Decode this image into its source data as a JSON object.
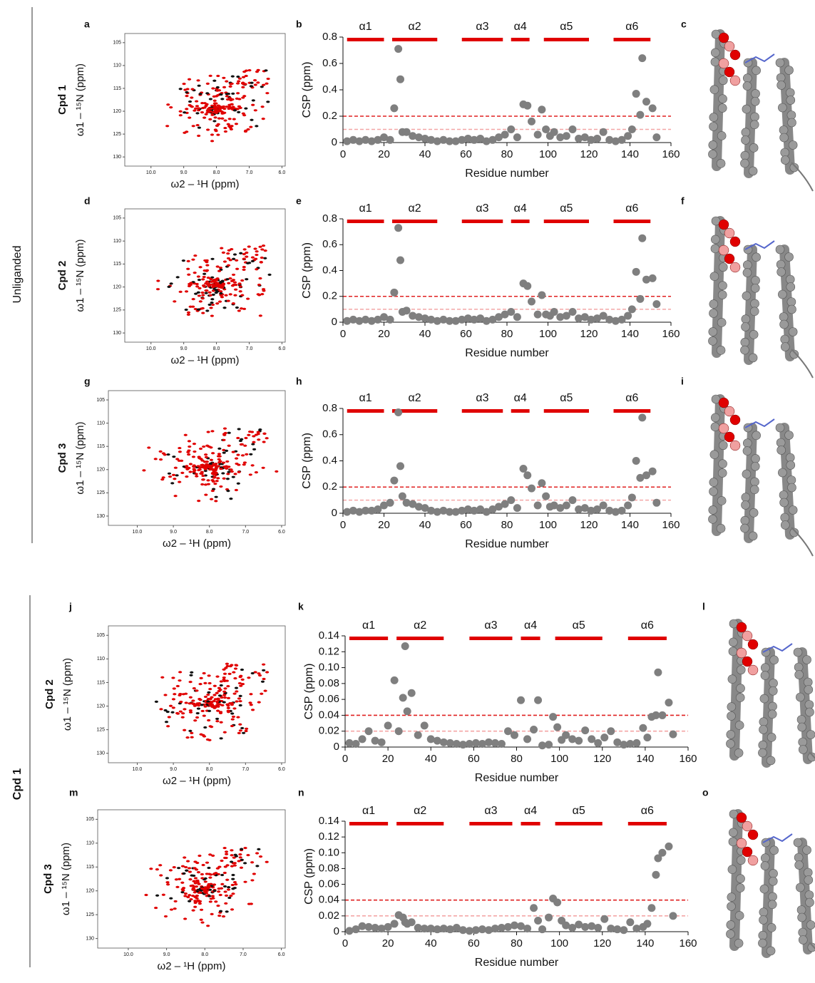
{
  "groups": [
    {
      "label": "Unliganded"
    },
    {
      "label": "Cpd 1"
    }
  ],
  "structure_panels": [
    "c",
    "f",
    "i",
    "l",
    "o"
  ],
  "chart_data": [
    {
      "type": "spectrum",
      "panel": "a",
      "compound": "Cpd 1",
      "xlabel": "ω2 – ¹H (ppm)",
      "ylabel": "ω1 – ¹⁵N (ppm)",
      "xlim": [
        10.8,
        5.9
      ],
      "xticks": [
        {
          "value": 10,
          "label": "10.0"
        },
        {
          "value": 9,
          "label": "9.0"
        },
        {
          "value": 8,
          "label": "8.0"
        },
        {
          "value": 7,
          "label": "7.0"
        },
        {
          "value": 6,
          "label": "6.0"
        }
      ],
      "ylim": [
        103,
        132
      ],
      "yticks": [
        105,
        110,
        115,
        120,
        125,
        130
      ],
      "colors": [
        "#e00000",
        "#111111"
      ]
    },
    {
      "type": "scatter",
      "panel": "b",
      "xlabel": "Residue number",
      "ylabel": "CSP (ppm)",
      "color": "#7f7f7f",
      "helix_color": "#e00000",
      "xlim": [
        0,
        160
      ],
      "xticks": [
        0,
        20,
        40,
        60,
        80,
        100,
        120,
        140,
        160
      ],
      "ylim": [
        0,
        0.8
      ],
      "yticks": [
        0,
        0.2,
        0.4,
        0.6,
        0.8
      ],
      "thresholds": [
        {
          "value": 0.2,
          "color": "#e02020"
        },
        {
          "value": 0.1,
          "color": "#f4a6a6"
        }
      ],
      "helices": [
        {
          "label": "α1",
          "start": 2,
          "end": 20
        },
        {
          "label": "α2",
          "start": 24,
          "end": 46
        },
        {
          "label": "α3",
          "start": 58,
          "end": 78
        },
        {
          "label": "α4",
          "start": 82,
          "end": 91
        },
        {
          "label": "α5",
          "start": 98,
          "end": 120
        },
        {
          "label": "α6",
          "start": 132,
          "end": 150
        }
      ],
      "x": [
        2,
        5,
        8,
        11,
        14,
        17,
        20,
        23,
        25,
        27,
        28,
        29,
        31,
        34,
        37,
        40,
        43,
        46,
        49,
        52,
        55,
        58,
        61,
        64,
        67,
        70,
        73,
        76,
        79,
        82,
        85,
        88,
        90,
        92,
        95,
        97,
        99,
        101,
        103,
        106,
        109,
        112,
        115,
        118,
        121,
        124,
        127,
        130,
        133,
        136,
        139,
        141,
        143,
        145,
        146,
        148,
        151,
        153
      ],
      "values": [
        0.01,
        0.02,
        0.01,
        0.02,
        0.01,
        0.02,
        0.04,
        0.02,
        0.26,
        0.71,
        0.48,
        0.08,
        0.08,
        0.05,
        0.04,
        0.03,
        0.02,
        0.01,
        0.02,
        0.01,
        0.01,
        0.02,
        0.03,
        0.02,
        0.03,
        0.01,
        0.02,
        0.04,
        0.06,
        0.1,
        0.04,
        0.29,
        0.28,
        0.16,
        0.06,
        0.25,
        0.1,
        0.05,
        0.08,
        0.04,
        0.05,
        0.1,
        0.03,
        0.04,
        0.02,
        0.03,
        0.08,
        0.02,
        0.01,
        0.02,
        0.05,
        0.1,
        0.37,
        0.21,
        0.64,
        0.31,
        0.26,
        0.04
      ]
    },
    {
      "type": "spectrum",
      "panel": "d",
      "compound": "Cpd 2",
      "xlabel": "ω2 – ¹H (ppm)",
      "ylabel": "ω1 – ¹⁵N (ppm)",
      "xlim": [
        10.8,
        5.9
      ],
      "xticks": [
        {
          "value": 10,
          "label": "10.0"
        },
        {
          "value": 9,
          "label": "9.0"
        },
        {
          "value": 8,
          "label": "8.0"
        },
        {
          "value": 7,
          "label": "7.0"
        },
        {
          "value": 6,
          "label": "6.0"
        }
      ],
      "ylim": [
        103,
        132
      ],
      "yticks": [
        105,
        110,
        115,
        120,
        125,
        130
      ],
      "colors": [
        "#e00000",
        "#111111"
      ]
    },
    {
      "type": "scatter",
      "panel": "e",
      "xlabel": "Residue number",
      "ylabel": "CSP (ppm)",
      "color": "#7f7f7f",
      "helix_color": "#e00000",
      "xlim": [
        0,
        160
      ],
      "xticks": [
        0,
        20,
        40,
        60,
        80,
        100,
        120,
        140,
        160
      ],
      "ylim": [
        0,
        0.8
      ],
      "yticks": [
        0,
        0.2,
        0.4,
        0.6,
        0.8
      ],
      "thresholds": [
        {
          "value": 0.2,
          "color": "#e02020"
        },
        {
          "value": 0.1,
          "color": "#f4a6a6"
        }
      ],
      "helices": [
        {
          "label": "α1",
          "start": 2,
          "end": 20
        },
        {
          "label": "α2",
          "start": 24,
          "end": 46
        },
        {
          "label": "α3",
          "start": 58,
          "end": 78
        },
        {
          "label": "α4",
          "start": 82,
          "end": 91
        },
        {
          "label": "α5",
          "start": 98,
          "end": 120
        },
        {
          "label": "α6",
          "start": 132,
          "end": 150
        }
      ],
      "x": [
        2,
        5,
        8,
        11,
        14,
        17,
        20,
        23,
        25,
        27,
        28,
        29,
        31,
        34,
        37,
        40,
        43,
        46,
        49,
        52,
        55,
        58,
        61,
        64,
        67,
        70,
        73,
        76,
        79,
        82,
        85,
        88,
        90,
        92,
        95,
        97,
        99,
        101,
        103,
        106,
        109,
        112,
        115,
        118,
        121,
        124,
        127,
        130,
        133,
        136,
        139,
        141,
        143,
        145,
        146,
        148,
        151,
        153
      ],
      "values": [
        0.01,
        0.02,
        0.01,
        0.02,
        0.01,
        0.02,
        0.04,
        0.02,
        0.23,
        0.73,
        0.48,
        0.08,
        0.09,
        0.05,
        0.04,
        0.03,
        0.02,
        0.01,
        0.02,
        0.01,
        0.01,
        0.02,
        0.03,
        0.02,
        0.03,
        0.01,
        0.02,
        0.04,
        0.06,
        0.08,
        0.04,
        0.3,
        0.28,
        0.16,
        0.06,
        0.21,
        0.06,
        0.05,
        0.08,
        0.04,
        0.05,
        0.08,
        0.03,
        0.04,
        0.02,
        0.03,
        0.05,
        0.02,
        0.01,
        0.02,
        0.05,
        0.1,
        0.39,
        0.18,
        0.65,
        0.33,
        0.34,
        0.14
      ]
    },
    {
      "type": "spectrum",
      "panel": "g",
      "compound": "Cpd 3",
      "xlabel": "ω2 – ¹H (ppm)",
      "ylabel": "ω1 – ¹⁵N (ppm)",
      "xlim": [
        10.8,
        5.9
      ],
      "xticks": [
        {
          "value": 10,
          "label": "10.0"
        },
        {
          "value": 9,
          "label": "9.0"
        },
        {
          "value": 8,
          "label": "8.0"
        },
        {
          "value": 7,
          "label": "7.0"
        },
        {
          "value": 6,
          "label": "6.0"
        }
      ],
      "ylim": [
        103,
        132
      ],
      "yticks": [
        105,
        110,
        115,
        120,
        125,
        130
      ],
      "colors": [
        "#e00000",
        "#111111"
      ]
    },
    {
      "type": "scatter",
      "panel": "h",
      "xlabel": "Residue number",
      "ylabel": "CSP (ppm)",
      "color": "#7f7f7f",
      "helix_color": "#e00000",
      "xlim": [
        0,
        160
      ],
      "xticks": [
        0,
        20,
        40,
        60,
        80,
        100,
        120,
        140,
        160
      ],
      "ylim": [
        0,
        0.8
      ],
      "yticks": [
        0,
        0.2,
        0.4,
        0.6,
        0.8
      ],
      "thresholds": [
        {
          "value": 0.2,
          "color": "#e02020"
        },
        {
          "value": 0.1,
          "color": "#f4a6a6"
        }
      ],
      "helices": [
        {
          "label": "α1",
          "start": 2,
          "end": 20
        },
        {
          "label": "α2",
          "start": 24,
          "end": 46
        },
        {
          "label": "α3",
          "start": 58,
          "end": 78
        },
        {
          "label": "α4",
          "start": 82,
          "end": 91
        },
        {
          "label": "α5",
          "start": 98,
          "end": 120
        },
        {
          "label": "α6",
          "start": 132,
          "end": 150
        }
      ],
      "x": [
        2,
        5,
        8,
        11,
        14,
        17,
        20,
        23,
        25,
        27,
        28,
        29,
        31,
        34,
        37,
        40,
        43,
        46,
        49,
        52,
        55,
        58,
        61,
        64,
        67,
        70,
        73,
        76,
        79,
        82,
        85,
        88,
        90,
        92,
        95,
        97,
        99,
        101,
        103,
        106,
        109,
        112,
        115,
        118,
        121,
        124,
        127,
        130,
        133,
        136,
        139,
        141,
        143,
        145,
        146,
        148,
        151,
        153
      ],
      "values": [
        0.01,
        0.02,
        0.01,
        0.02,
        0.02,
        0.03,
        0.06,
        0.08,
        0.25,
        0.77,
        0.36,
        0.13,
        0.08,
        0.07,
        0.05,
        0.04,
        0.02,
        0.01,
        0.02,
        0.01,
        0.01,
        0.02,
        0.03,
        0.02,
        0.03,
        0.01,
        0.03,
        0.05,
        0.07,
        0.1,
        0.04,
        0.34,
        0.29,
        0.19,
        0.06,
        0.23,
        0.13,
        0.05,
        0.06,
        0.04,
        0.06,
        0.1,
        0.03,
        0.04,
        0.02,
        0.03,
        0.06,
        0.02,
        0.01,
        0.02,
        0.06,
        0.12,
        0.4,
        0.27,
        0.73,
        0.29,
        0.32,
        0.08
      ]
    },
    {
      "type": "spectrum",
      "panel": "j",
      "compound": "Cpd 2",
      "xlabel": "ω2 – ¹H (ppm)",
      "ylabel": "ω1 – ¹⁵N (ppm)",
      "xlim": [
        10.8,
        5.9
      ],
      "xticks": [
        {
          "value": 10,
          "label": "10.0"
        },
        {
          "value": 9,
          "label": "9.0"
        },
        {
          "value": 8,
          "label": "8.0"
        },
        {
          "value": 7,
          "label": "7.0"
        },
        {
          "value": 6,
          "label": "6.0"
        }
      ],
      "ylim": [
        103,
        132
      ],
      "yticks": [
        105,
        110,
        115,
        120,
        125,
        130
      ],
      "colors": [
        "#e00000",
        "#111111"
      ]
    },
    {
      "type": "scatter",
      "panel": "k",
      "xlabel": "Residue number",
      "ylabel": "CSP (ppm)",
      "color": "#7f7f7f",
      "helix_color": "#e00000",
      "xlim": [
        0,
        160
      ],
      "xticks": [
        0,
        20,
        40,
        60,
        80,
        100,
        120,
        140,
        160
      ],
      "ylim": [
        0,
        0.14
      ],
      "yticks": [
        0,
        0.02,
        0.04,
        0.06,
        0.08,
        {
          "value": 0.1,
          "label": "0.10"
        },
        0.12,
        0.14
      ],
      "thresholds": [
        {
          "value": 0.04,
          "color": "#e02020"
        },
        {
          "value": 0.02,
          "color": "#f4a6a6"
        }
      ],
      "helices": [
        {
          "label": "α1",
          "start": 2,
          "end": 20
        },
        {
          "label": "α2",
          "start": 24,
          "end": 46
        },
        {
          "label": "α3",
          "start": 58,
          "end": 78
        },
        {
          "label": "α4",
          "start": 82,
          "end": 91
        },
        {
          "label": "α5",
          "start": 98,
          "end": 120
        },
        {
          "label": "α6",
          "start": 132,
          "end": 150
        }
      ],
      "x": [
        2,
        5,
        8,
        11,
        14,
        17,
        20,
        23,
        25,
        27,
        28,
        29,
        31,
        34,
        37,
        40,
        43,
        46,
        49,
        52,
        55,
        58,
        61,
        64,
        67,
        70,
        73,
        76,
        79,
        82,
        85,
        88,
        90,
        92,
        95,
        97,
        99,
        101,
        103,
        106,
        109,
        112,
        115,
        118,
        121,
        124,
        127,
        130,
        133,
        136,
        139,
        141,
        143,
        145,
        146,
        148,
        151,
        153
      ],
      "values": [
        0.005,
        0.004,
        0.01,
        0.02,
        0.008,
        0.006,
        0.027,
        0.084,
        0.02,
        0.062,
        0.127,
        0.045,
        0.068,
        0.015,
        0.027,
        0.01,
        0.008,
        0.006,
        0.005,
        0.004,
        0.003,
        0.004,
        0.005,
        0.004,
        0.006,
        0.005,
        0.004,
        0.02,
        0.015,
        0.059,
        0.01,
        0.022,
        0.059,
        0.002,
        0.003,
        0.038,
        0.025,
        0.009,
        0.015,
        0.01,
        0.008,
        0.021,
        0.01,
        0.005,
        0.012,
        0.02,
        0.006,
        0.003,
        0.004,
        0.005,
        0.024,
        0.012,
        0.038,
        0.04,
        0.094,
        0.04,
        0.056,
        0.016
      ]
    },
    {
      "type": "spectrum",
      "panel": "m",
      "compound": "Cpd 3",
      "xlabel": "ω2 – ¹H (ppm)",
      "ylabel": "ω1 – ¹⁵N (ppm)",
      "xlim": [
        10.8,
        5.9
      ],
      "xticks": [
        {
          "value": 10,
          "label": "10.0"
        },
        {
          "value": 9,
          "label": "9.0"
        },
        {
          "value": 8,
          "label": "8.0"
        },
        {
          "value": 7,
          "label": "7.0"
        },
        {
          "value": 6,
          "label": "6.0"
        }
      ],
      "ylim": [
        103,
        132
      ],
      "yticks": [
        105,
        110,
        115,
        120,
        125,
        130
      ],
      "colors": [
        "#e00000",
        "#111111"
      ]
    },
    {
      "type": "scatter",
      "panel": "n",
      "xlabel": "Residue number",
      "ylabel": "CSP (ppm)",
      "color": "#7f7f7f",
      "helix_color": "#e00000",
      "xlim": [
        0,
        160
      ],
      "xticks": [
        0,
        20,
        40,
        60,
        80,
        100,
        120,
        140,
        160
      ],
      "ylim": [
        0,
        0.14
      ],
      "yticks": [
        0,
        0.02,
        0.04,
        0.06,
        0.08,
        {
          "value": 0.1,
          "label": "0.10"
        },
        0.12,
        0.14
      ],
      "thresholds": [
        {
          "value": 0.04,
          "color": "#e02020"
        },
        {
          "value": 0.02,
          "color": "#f4a6a6"
        }
      ],
      "helices": [
        {
          "label": "α1",
          "start": 2,
          "end": 20
        },
        {
          "label": "α2",
          "start": 24,
          "end": 46
        },
        {
          "label": "α3",
          "start": 58,
          "end": 78
        },
        {
          "label": "α4",
          "start": 82,
          "end": 91
        },
        {
          "label": "α5",
          "start": 98,
          "end": 120
        },
        {
          "label": "α6",
          "start": 132,
          "end": 150
        }
      ],
      "x": [
        2,
        5,
        8,
        11,
        14,
        17,
        20,
        23,
        25,
        27,
        28,
        29,
        31,
        34,
        37,
        40,
        43,
        46,
        49,
        52,
        55,
        58,
        61,
        64,
        67,
        70,
        73,
        76,
        79,
        82,
        85,
        88,
        90,
        92,
        95,
        97,
        99,
        101,
        103,
        106,
        109,
        112,
        115,
        118,
        121,
        124,
        127,
        130,
        133,
        136,
        139,
        141,
        143,
        145,
        146,
        148,
        151,
        153
      ],
      "values": [
        0.001,
        0.003,
        0.007,
        0.006,
        0.005,
        0.004,
        0.006,
        0.01,
        0.021,
        0.018,
        0.012,
        0.01,
        0.012,
        0.005,
        0.004,
        0.004,
        0.003,
        0.004,
        0.003,
        0.005,
        0.002,
        0.001,
        0.002,
        0.003,
        0.002,
        0.004,
        0.005,
        0.006,
        0.008,
        0.007,
        0.004,
        0.03,
        0.014,
        0.003,
        0.018,
        0.042,
        0.037,
        0.014,
        0.008,
        0.005,
        0.009,
        0.006,
        0.007,
        0.005,
        0.016,
        0.004,
        0.003,
        0.002,
        0.012,
        0.004,
        0.006,
        0.01,
        0.03,
        0.072,
        0.093,
        0.1,
        0.108,
        0.02
      ]
    }
  ]
}
